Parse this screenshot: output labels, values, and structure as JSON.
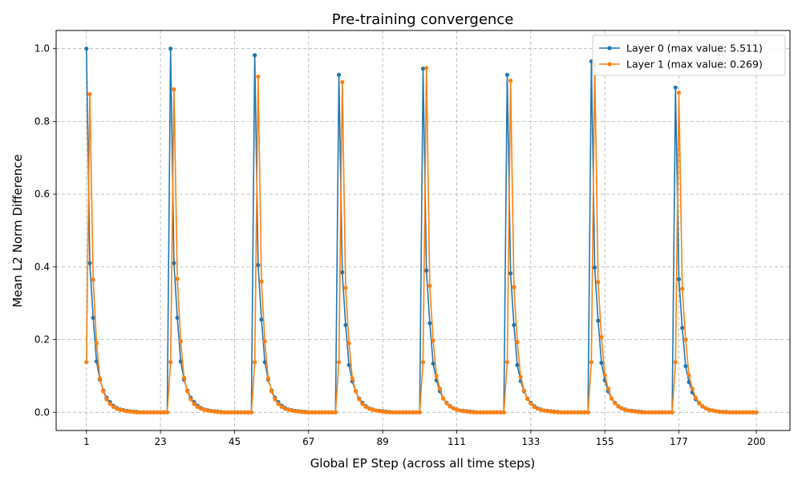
{
  "chart_data": {
    "type": "line",
    "title": "Pre-training convergence",
    "xlabel": "Global EP Step (across all time steps)",
    "ylabel": "Mean L2 Norm Difference",
    "xlim": [
      -8,
      210
    ],
    "ylim": [
      -0.05,
      1.05
    ],
    "xticks": [
      1,
      23,
      45,
      67,
      89,
      111,
      133,
      155,
      177,
      200
    ],
    "yticks": [
      "0.0",
      "0.2",
      "0.4",
      "0.6",
      "0.8",
      "1.0"
    ],
    "grid": true,
    "legend_position": "top-right",
    "series": [
      {
        "name": "Layer 0 (max value: 5.511)",
        "color": "#1f77b4",
        "x": [
          1,
          2,
          3,
          4,
          5,
          6,
          7,
          8,
          9,
          10,
          11,
          12,
          13,
          14,
          15,
          16,
          17,
          18,
          19,
          20,
          21,
          22,
          23,
          24,
          25,
          26,
          27,
          28,
          29,
          30,
          31,
          32,
          33,
          34,
          35,
          36,
          37,
          38,
          39,
          40,
          41,
          42,
          43,
          44,
          45,
          46,
          47,
          48,
          49,
          50,
          51,
          52,
          53,
          54,
          55,
          56,
          57,
          58,
          59,
          60,
          61,
          62,
          63,
          64,
          65,
          66,
          67,
          68,
          69,
          70,
          71,
          72,
          73,
          74,
          75,
          76,
          77,
          78,
          79,
          80,
          81,
          82,
          83,
          84,
          85,
          86,
          87,
          88,
          89,
          90,
          91,
          92,
          93,
          94,
          95,
          96,
          97,
          98,
          99,
          100,
          101,
          102,
          103,
          104,
          105,
          106,
          107,
          108,
          109,
          110,
          111,
          112,
          113,
          114,
          115,
          116,
          117,
          118,
          119,
          120,
          121,
          122,
          123,
          124,
          125,
          126,
          127,
          128,
          129,
          130,
          131,
          132,
          133,
          134,
          135,
          136,
          137,
          138,
          139,
          140,
          141,
          142,
          143,
          144,
          145,
          146,
          147,
          148,
          149,
          150,
          151,
          152,
          153,
          154,
          155,
          156,
          157,
          158,
          159,
          160,
          161,
          162,
          163,
          164,
          165,
          166,
          167,
          168,
          169,
          170,
          171,
          172,
          173,
          174,
          175,
          176,
          177,
          178,
          179,
          180,
          181,
          182,
          183,
          184,
          185,
          186,
          187,
          188,
          189,
          190,
          191,
          192,
          193,
          194,
          195,
          196,
          197,
          198,
          199,
          200
        ],
        "y": [
          1.0,
          0.41,
          0.26,
          0.14,
          0.09,
          0.06,
          0.04,
          0.028,
          0.018,
          0.012,
          0.008,
          0.006,
          0.004,
          0.003,
          0.002,
          0.001,
          0.0,
          0.0,
          0.0,
          0.0,
          0.0,
          0.0,
          0.0,
          0.0,
          0.0,
          1.0,
          0.41,
          0.26,
          0.14,
          0.09,
          0.06,
          0.04,
          0.028,
          0.018,
          0.012,
          0.008,
          0.006,
          0.004,
          0.003,
          0.002,
          0.001,
          0.0,
          0.0,
          0.0,
          0.0,
          0.0,
          0.0,
          0.0,
          0.0,
          0.0,
          0.982,
          0.405,
          0.255,
          0.138,
          0.09,
          0.06,
          0.04,
          0.028,
          0.018,
          0.012,
          0.008,
          0.006,
          0.004,
          0.003,
          0.002,
          0.001,
          0.0,
          0.0,
          0.0,
          0.0,
          0.0,
          0.0,
          0.0,
          0.0,
          0.0,
          0.928,
          0.385,
          0.24,
          0.13,
          0.085,
          0.058,
          0.038,
          0.026,
          0.017,
          0.011,
          0.008,
          0.005,
          0.004,
          0.003,
          0.002,
          0.001,
          0.0,
          0.0,
          0.0,
          0.0,
          0.0,
          0.0,
          0.0,
          0.0,
          0.0,
          0.945,
          0.39,
          0.245,
          0.134,
          0.088,
          0.058,
          0.038,
          0.026,
          0.017,
          0.011,
          0.008,
          0.005,
          0.004,
          0.003,
          0.002,
          0.001,
          0.0,
          0.0,
          0.0,
          0.0,
          0.0,
          0.0,
          0.0,
          0.0,
          0.0,
          0.928,
          0.382,
          0.24,
          0.13,
          0.086,
          0.058,
          0.038,
          0.026,
          0.017,
          0.011,
          0.008,
          0.005,
          0.004,
          0.003,
          0.002,
          0.001,
          0.0,
          0.0,
          0.0,
          0.0,
          0.0,
          0.0,
          0.0,
          0.0,
          0.0,
          0.965,
          0.398,
          0.252,
          0.136,
          0.088,
          0.058,
          0.038,
          0.026,
          0.017,
          0.011,
          0.008,
          0.005,
          0.004,
          0.003,
          0.002,
          0.001,
          0.0,
          0.0,
          0.0,
          0.0,
          0.0,
          0.0,
          0.0,
          0.0,
          0.0,
          0.893,
          0.366,
          0.232,
          0.127,
          0.083,
          0.055,
          0.036,
          0.025,
          0.016,
          0.011,
          0.007,
          0.005,
          0.003,
          0.002,
          0.001,
          0.001,
          0.0,
          0.0,
          0.0,
          0.0,
          0.0,
          0.0,
          0.0,
          0.0,
          0.0
        ]
      },
      {
        "name": "Layer 1 (max value: 0.269)",
        "color": "#ff7f0e",
        "x": [
          1,
          2,
          3,
          4,
          5,
          6,
          7,
          8,
          9,
          10,
          11,
          12,
          13,
          14,
          15,
          16,
          17,
          18,
          19,
          20,
          21,
          22,
          23,
          24,
          25,
          26,
          27,
          28,
          29,
          30,
          31,
          32,
          33,
          34,
          35,
          36,
          37,
          38,
          39,
          40,
          41,
          42,
          43,
          44,
          45,
          46,
          47,
          48,
          49,
          50,
          51,
          52,
          53,
          54,
          55,
          56,
          57,
          58,
          59,
          60,
          61,
          62,
          63,
          64,
          65,
          66,
          67,
          68,
          69,
          70,
          71,
          72,
          73,
          74,
          75,
          76,
          77,
          78,
          79,
          80,
          81,
          82,
          83,
          84,
          85,
          86,
          87,
          88,
          89,
          90,
          91,
          92,
          93,
          94,
          95,
          96,
          97,
          98,
          99,
          100,
          101,
          102,
          103,
          104,
          105,
          106,
          107,
          108,
          109,
          110,
          111,
          112,
          113,
          114,
          115,
          116,
          117,
          118,
          119,
          120,
          121,
          122,
          123,
          124,
          125,
          126,
          127,
          128,
          129,
          130,
          131,
          132,
          133,
          134,
          135,
          136,
          137,
          138,
          139,
          140,
          141,
          142,
          143,
          144,
          145,
          146,
          147,
          148,
          149,
          150,
          151,
          152,
          153,
          154,
          155,
          156,
          157,
          158,
          159,
          160,
          161,
          162,
          163,
          164,
          165,
          166,
          167,
          168,
          169,
          170,
          171,
          172,
          173,
          174,
          175,
          176,
          177,
          178,
          179,
          180,
          181,
          182,
          183,
          184,
          185,
          186,
          187,
          188,
          189,
          190,
          191,
          192,
          193,
          194,
          195,
          196,
          197,
          198,
          199,
          200
        ],
        "y": [
          0.138,
          0.875,
          0.365,
          0.19,
          0.093,
          0.058,
          0.036,
          0.023,
          0.015,
          0.01,
          0.007,
          0.005,
          0.003,
          0.002,
          0.001,
          0.0,
          0.0,
          0.0,
          0.0,
          0.0,
          0.0,
          0.0,
          0.0,
          0.0,
          0.0,
          0.138,
          0.888,
          0.367,
          0.195,
          0.095,
          0.058,
          0.036,
          0.023,
          0.015,
          0.01,
          0.007,
          0.005,
          0.003,
          0.002,
          0.001,
          0.0,
          0.0,
          0.0,
          0.0,
          0.0,
          0.0,
          0.0,
          0.0,
          0.0,
          0.0,
          0.138,
          0.923,
          0.36,
          0.195,
          0.093,
          0.058,
          0.036,
          0.023,
          0.015,
          0.01,
          0.007,
          0.005,
          0.003,
          0.002,
          0.001,
          0.0,
          0.0,
          0.0,
          0.0,
          0.0,
          0.0,
          0.0,
          0.0,
          0.0,
          0.0,
          0.138,
          0.908,
          0.342,
          0.19,
          0.093,
          0.058,
          0.036,
          0.023,
          0.015,
          0.01,
          0.007,
          0.005,
          0.003,
          0.002,
          0.001,
          0.0,
          0.0,
          0.0,
          0.0,
          0.0,
          0.0,
          0.0,
          0.0,
          0.0,
          0.0,
          0.138,
          0.947,
          0.348,
          0.197,
          0.1,
          0.065,
          0.038,
          0.025,
          0.016,
          0.011,
          0.007,
          0.005,
          0.003,
          0.002,
          0.001,
          0.0,
          0.0,
          0.0,
          0.0,
          0.0,
          0.0,
          0.0,
          0.0,
          0.0,
          0.0,
          0.138,
          0.912,
          0.344,
          0.193,
          0.097,
          0.06,
          0.037,
          0.024,
          0.015,
          0.01,
          0.007,
          0.005,
          0.003,
          0.002,
          0.001,
          0.0,
          0.0,
          0.0,
          0.0,
          0.0,
          0.0,
          0.0,
          0.0,
          0.0,
          0.0,
          0.138,
          0.955,
          0.358,
          0.207,
          0.102,
          0.065,
          0.038,
          0.025,
          0.016,
          0.011,
          0.007,
          0.005,
          0.003,
          0.002,
          0.001,
          0.0,
          0.0,
          0.0,
          0.0,
          0.0,
          0.0,
          0.0,
          0.0,
          0.0,
          0.0,
          0.138,
          0.879,
          0.34,
          0.2,
          0.102,
          0.065,
          0.04,
          0.026,
          0.017,
          0.011,
          0.007,
          0.005,
          0.003,
          0.002,
          0.001,
          0.0,
          0.0,
          0.0,
          0.0,
          0.0,
          0.0,
          0.0,
          0.0,
          0.0,
          0.0
        ]
      }
    ]
  }
}
